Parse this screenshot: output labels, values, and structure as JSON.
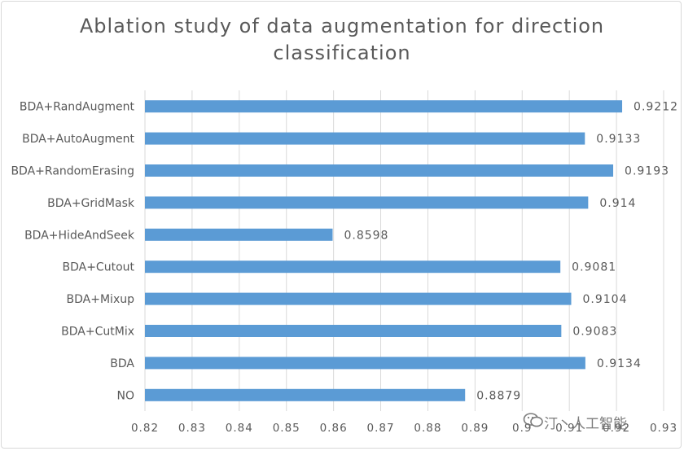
{
  "chart_data": {
    "type": "bar",
    "orientation": "horizontal",
    "title": "Ablation study of data augmentation for direction classification",
    "title_lines": [
      "Ablation study of data augmentation for direction",
      "classification"
    ],
    "categories": [
      "BDA+RandAugment",
      "BDA+AutoAugment",
      "BDA+RandomErasing",
      "BDA+GridMask",
      "BDA+HideAndSeek",
      "BDA+Cutout",
      "BDA+Mixup",
      "BDA+CutMix",
      "BDA",
      "NO"
    ],
    "values": [
      0.9212,
      0.9133,
      0.9193,
      0.914,
      0.8598,
      0.9081,
      0.9104,
      0.9083,
      0.9134,
      0.8879
    ],
    "value_labels": [
      "0.9212",
      "0.9133",
      "0.9193",
      "0.914",
      "0.8598",
      "0.9081",
      "0.9104",
      "0.9083",
      "0.9134",
      "0.8879"
    ],
    "xlim": [
      0.82,
      0.93
    ],
    "xticks": [
      0.82,
      0.83,
      0.84,
      0.85,
      0.86,
      0.87,
      0.88,
      0.89,
      0.9,
      0.91,
      0.92,
      0.93
    ],
    "xtick_labels": [
      "0.82",
      "0.83",
      "0.84",
      "0.85",
      "0.86",
      "0.87",
      "0.88",
      "0.89",
      "0.9",
      "0.91",
      "0.92",
      "0.93"
    ],
    "grid": "vertical",
    "bar_color": "#5b9bd5",
    "grid_color": "#d9d9d9",
    "text_color": "#595959"
  },
  "watermark": {
    "text": "汀丶人工智能",
    "icon": "wechat-icon"
  }
}
